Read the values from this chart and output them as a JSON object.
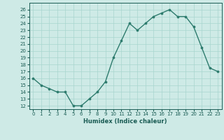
{
  "x": [
    0,
    1,
    2,
    3,
    4,
    5,
    6,
    7,
    8,
    9,
    10,
    11,
    12,
    13,
    14,
    15,
    16,
    17,
    18,
    19,
    20,
    21,
    22,
    23
  ],
  "y": [
    16,
    15,
    14.5,
    14,
    14,
    12,
    12,
    13,
    14,
    15.5,
    19,
    21.5,
    24,
    23,
    24,
    25,
    25.5,
    26,
    25,
    25,
    23.5,
    20.5,
    17.5,
    17
  ],
  "xlabel": "Humidex (Indice chaleur)",
  "xlim": [
    -0.5,
    23.5
  ],
  "ylim": [
    11.5,
    27
  ],
  "yticks": [
    12,
    13,
    14,
    15,
    16,
    17,
    18,
    19,
    20,
    21,
    22,
    23,
    24,
    25,
    26
  ],
  "xticks": [
    0,
    1,
    2,
    3,
    4,
    5,
    6,
    7,
    8,
    9,
    10,
    11,
    12,
    13,
    14,
    15,
    16,
    17,
    18,
    19,
    20,
    21,
    22,
    23
  ],
  "line_color": "#2d7b6d",
  "marker_color": "#2d7b6d",
  "bg_color": "#ceeae6",
  "grid_color": "#a8d5cf",
  "tick_label_color": "#1a5c54"
}
